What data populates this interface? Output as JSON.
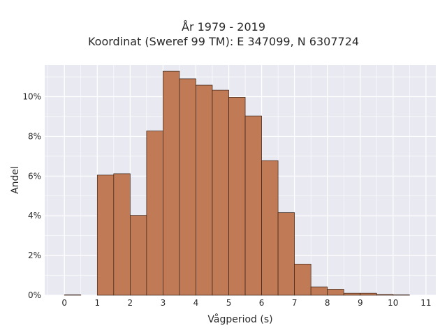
{
  "chart_data": {
    "type": "bar",
    "title_lines": [
      "År 1979 - 2019",
      "Koordinat (Sweref 99 TM): E 347099, N 6307724"
    ],
    "xlabel": "Vågperiod (s)",
    "ylabel": "Andel",
    "bin_width": 0.5,
    "x_bin_starts": [
      0,
      1,
      1.5,
      2,
      2.5,
      3,
      3.5,
      4,
      4.5,
      5,
      5.5,
      6,
      6.5,
      7,
      7.5,
      8,
      8.5,
      9,
      9.5,
      10
    ],
    "values": [
      0.02,
      6.05,
      6.12,
      4.02,
      8.27,
      11.28,
      10.9,
      10.58,
      10.33,
      9.97,
      9.03,
      6.78,
      4.16,
      1.57,
      0.42,
      0.3,
      0.1,
      0.1,
      0.04,
      0.02
    ],
    "xlim": [
      -0.6,
      11.3
    ],
    "ylim": [
      0,
      11.6
    ],
    "x_ticks": [
      0,
      1,
      2,
      3,
      4,
      5,
      6,
      7,
      8,
      9,
      10,
      11
    ],
    "y_ticks": [
      0,
      2,
      4,
      6,
      8,
      10
    ],
    "y_tick_suffix": "%",
    "bar_color": "#c07a55",
    "bar_edge_color": "#3a2418",
    "plot_background": "#e9e9f2",
    "grid": true
  }
}
